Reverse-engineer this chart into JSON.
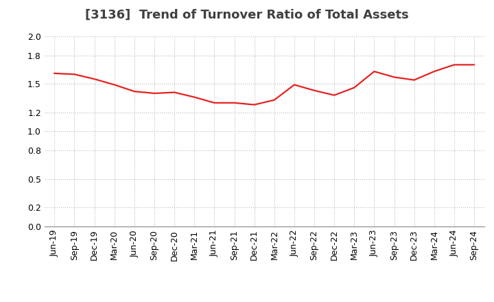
{
  "title": "[3136]  Trend of Turnover Ratio of Total Assets",
  "x_labels": [
    "Jun-19",
    "Sep-19",
    "Dec-19",
    "Mar-20",
    "Jun-20",
    "Sep-20",
    "Dec-20",
    "Mar-21",
    "Jun-21",
    "Sep-21",
    "Dec-21",
    "Mar-22",
    "Jun-22",
    "Sep-22",
    "Dec-22",
    "Mar-23",
    "Jun-23",
    "Sep-23",
    "Dec-23",
    "Mar-24",
    "Jun-24",
    "Sep-24"
  ],
  "y_values": [
    1.61,
    1.6,
    1.55,
    1.49,
    1.42,
    1.4,
    1.41,
    1.36,
    1.3,
    1.3,
    1.28,
    1.33,
    1.49,
    1.43,
    1.38,
    1.46,
    1.63,
    1.57,
    1.54,
    1.63,
    1.7,
    1.7
  ],
  "line_color": "#e82020",
  "line_width": 1.6,
  "ylim": [
    0.0,
    2.0
  ],
  "yticks": [
    0.0,
    0.2,
    0.5,
    0.8,
    1.0,
    1.2,
    1.5,
    1.8,
    2.0
  ],
  "grid_color": "#bbbbbb",
  "bg_color": "#ffffff",
  "title_fontsize": 13,
  "tick_fontsize": 9,
  "title_color": "#404040"
}
